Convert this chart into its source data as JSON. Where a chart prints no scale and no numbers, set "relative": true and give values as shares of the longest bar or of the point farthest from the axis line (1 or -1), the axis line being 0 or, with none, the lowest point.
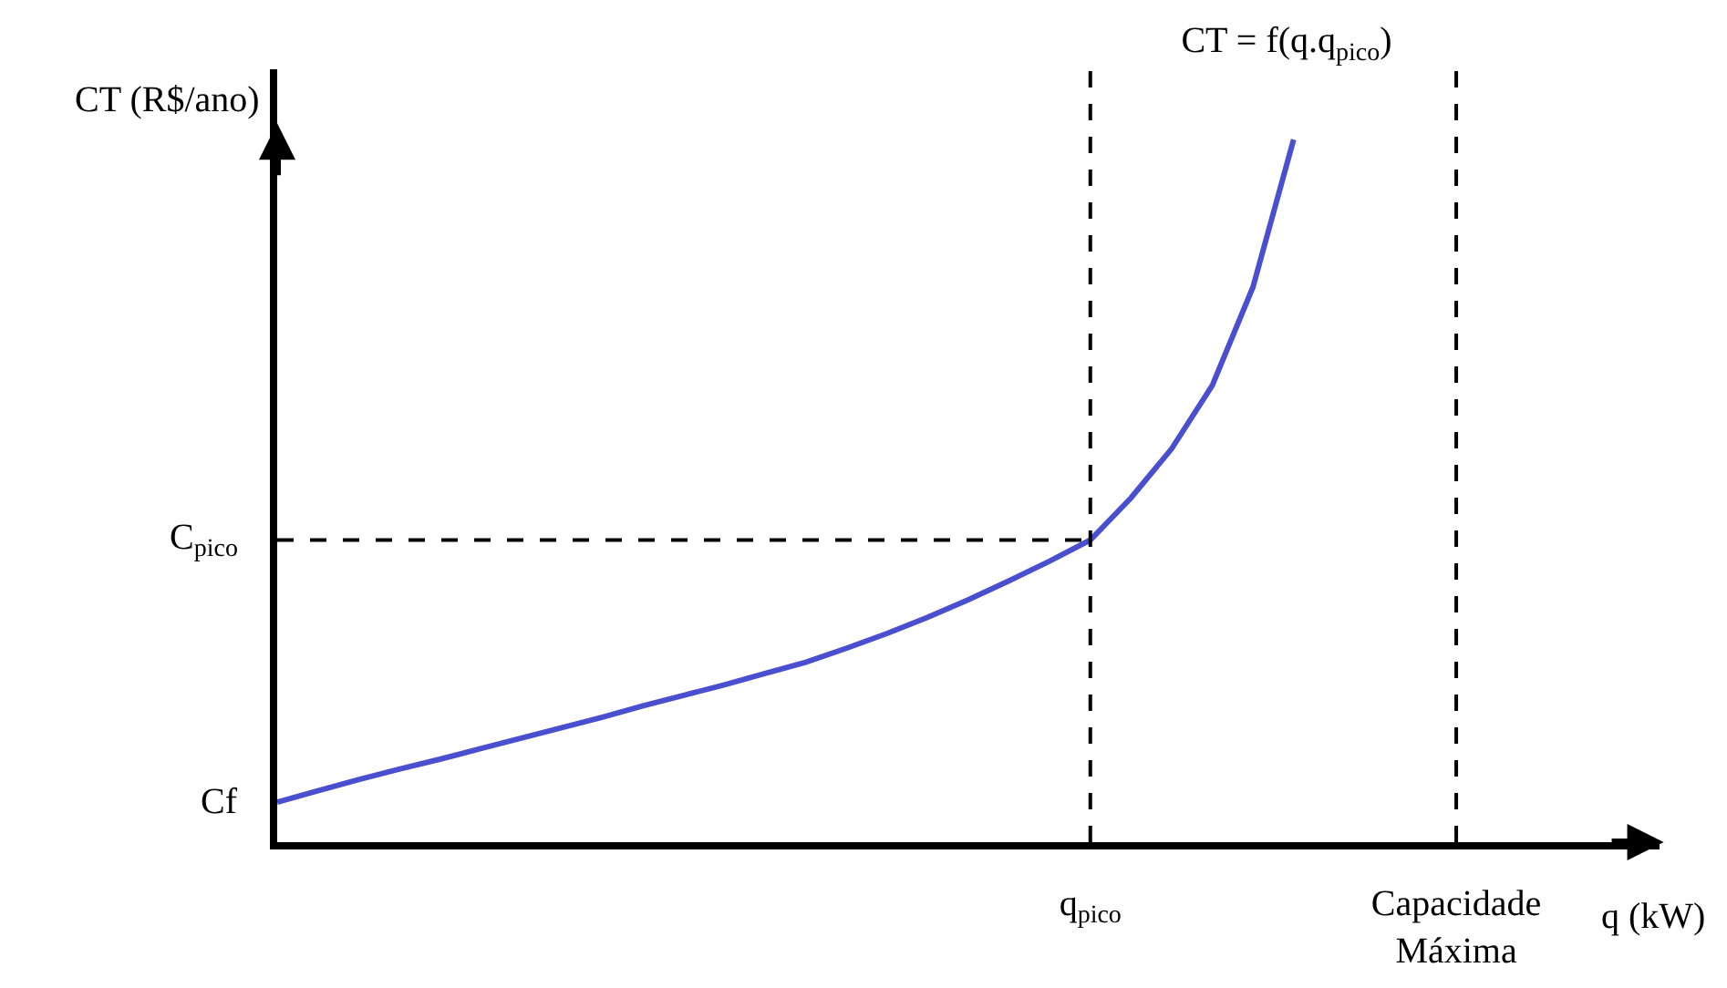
{
  "chart_data": {
    "type": "line",
    "relative": true,
    "title": "CT = f(q.q$_{pico}$)",
    "xlabel": "q (kW)",
    "ylabel": "CT (R$/ano)",
    "categories": [
      null,
      null,
      null,
      null,
      null,
      null,
      null,
      null,
      null,
      null,
      null,
      null,
      null,
      null,
      null,
      null,
      null,
      null,
      null,
      null,
      "q$_{pico}$",
      null,
      null,
      null,
      null,
      null,
      null,
      null,
      null,
      "Capacidade Máxima",
      null,
      null,
      null,
      null,
      null
    ],
    "series": [
      {
        "color": "#4a4fd0",
        "values": [
          0.057,
          0.073,
          0.089,
          0.104,
          0.118,
          0.133,
          0.148,
          0.163,
          0.178,
          0.194,
          0.209,
          0.224,
          0.24,
          0.256,
          0.276,
          0.297,
          0.32,
          0.345,
          0.372,
          0.4,
          0.43,
          0.49,
          0.56,
          0.65,
          0.79,
          1,
          null,
          null,
          null,
          null,
          null,
          null,
          null,
          null,
          null
        ]
      },
      {
        "color": "#000000",
        "line_style": "dashed",
        "values": [
          0.43,
          0.43,
          0.43,
          0.43,
          0.43,
          0.43,
          0.43,
          0.43,
          0.43,
          0.43,
          0.43,
          0.43,
          0.43,
          0.43,
          0.43,
          0.43,
          0.43,
          0.43,
          0.43,
          0.43,
          0.43,
          null,
          null,
          null,
          null,
          null,
          null,
          null,
          null,
          null,
          null,
          null,
          null,
          null,
          null
        ]
      }
    ],
    "ref_lines": [
      {
        "axis": "x",
        "value": "q$_{pico}$",
        "color": "#000000",
        "line_style": "dashed"
      },
      {
        "axis": "x",
        "value": "Capacidade Máxima",
        "color": "#000000",
        "line_style": "dashed"
      }
    ],
    "annotations": [
      "Cf",
      "C$_{pico}$"
    ],
    "grid": false
  }
}
